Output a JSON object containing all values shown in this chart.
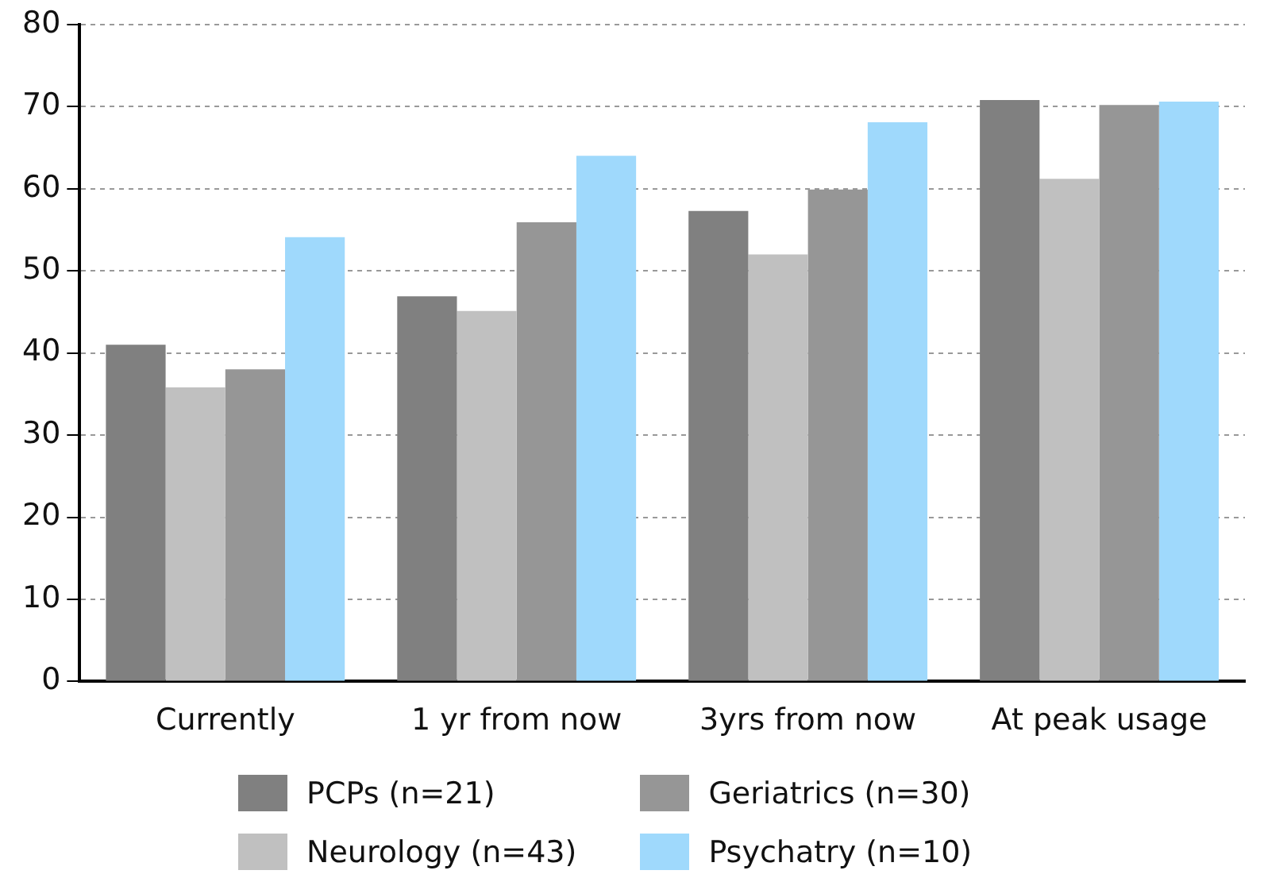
{
  "chart_data": {
    "type": "bar",
    "categories": [
      "Currently",
      "1 yr from now",
      "3yrs from now",
      "At peak usage"
    ],
    "series": [
      {
        "name": "PCPs (n=21)",
        "color": "#808080",
        "values": [
          41,
          46.9,
          57.3,
          70.8
        ]
      },
      {
        "name": "Neurology (n=43)",
        "color": "#c0c0c0",
        "values": [
          35.8,
          45.1,
          52,
          61.2
        ]
      },
      {
        "name": "Geriatrics (n=30)",
        "color": "#969696",
        "values": [
          38,
          55.9,
          59.9,
          70.2
        ]
      },
      {
        "name": "Psychatry (n=10)",
        "color": "#9fd9fc",
        "values": [
          54.1,
          64,
          68.1,
          70.6
        ]
      }
    ],
    "ylim": [
      0,
      80
    ],
    "yticks": [
      0,
      10,
      20,
      30,
      40,
      50,
      60,
      70,
      80
    ],
    "grid": "y",
    "legend": "bottom"
  }
}
